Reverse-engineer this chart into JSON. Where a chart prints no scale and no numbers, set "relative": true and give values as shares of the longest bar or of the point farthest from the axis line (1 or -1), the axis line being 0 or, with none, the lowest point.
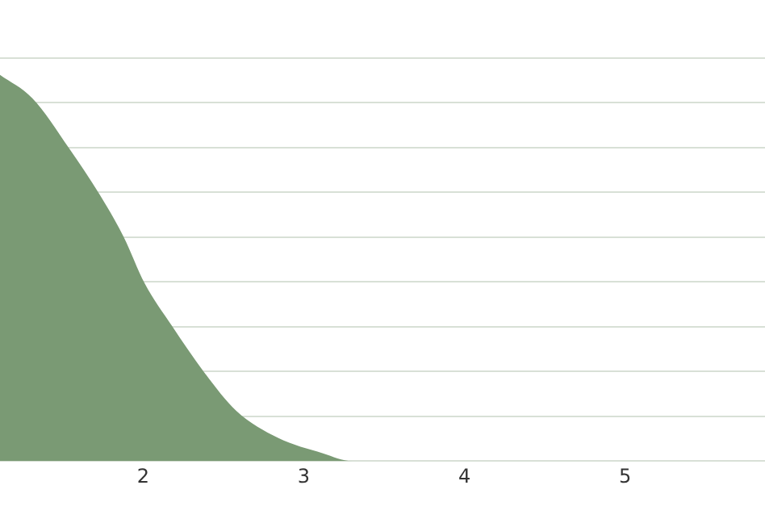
{
  "chart_data": {
    "type": "area",
    "relative": true,
    "x": [
      1.11,
      1.31,
      1.54,
      1.73,
      1.88,
      2.01,
      2.18,
      2.38,
      2.58,
      2.84,
      3.12,
      3.3,
      4,
      5,
      5.87
    ],
    "series": [
      {
        "color": "#7a9a74",
        "values": [
          1,
          0.94,
          0.81,
          0.69,
          0.58,
          0.46,
          0.35,
          0.23,
          0.13,
          0.06,
          0.02,
          0,
          0,
          0,
          0
        ]
      }
    ],
    "xlim": [
      1.11,
      5.87
    ],
    "xticks": [
      2,
      3,
      4,
      5
    ],
    "grid": "y",
    "legend": false
  }
}
